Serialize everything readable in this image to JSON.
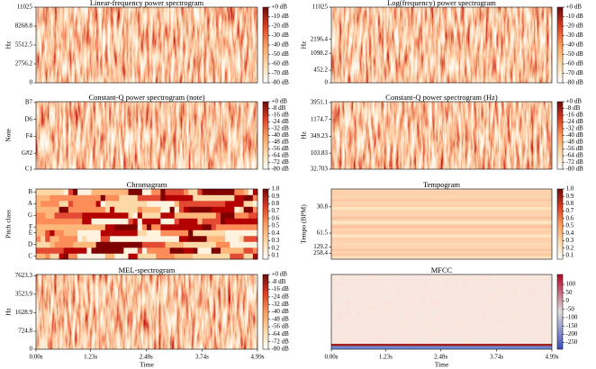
{
  "chart_data": [
    {
      "type": "spectrogram",
      "title": "Linear-frequency power spectrogram",
      "ylabel": "Hz",
      "yscale": "linear",
      "ylim": [
        0,
        11025
      ],
      "yticks": [
        0,
        2756.2,
        5512.5,
        8268.8,
        11025
      ],
      "colormap": "OrRd",
      "colorbar_lim": [
        -80,
        0
      ],
      "colorbar_ticks": [
        {
          "value": 0,
          "label": "+0 dB"
        },
        {
          "value": -10,
          "label": "-10 dB"
        },
        {
          "value": -20,
          "label": "-20 dB"
        },
        {
          "value": -30,
          "label": "-30 dB"
        },
        {
          "value": -40,
          "label": "-40 dB"
        },
        {
          "value": -50,
          "label": "-50 dB"
        },
        {
          "value": -60,
          "label": "-60 dB"
        },
        {
          "value": -70,
          "label": "-70 dB"
        },
        {
          "value": -80,
          "label": "-80 dB"
        }
      ]
    },
    {
      "type": "spectrogram",
      "title": "Log(frequency) power spectrogram",
      "ylabel": "Hz",
      "yscale": "symlog",
      "ylim": [
        0,
        11025
      ],
      "yticks": [
        0,
        452.2,
        1098.2,
        2196.4,
        11025
      ],
      "colormap": "OrRd",
      "colorbar_lim": [
        -80,
        0
      ],
      "colorbar_ticks": [
        {
          "value": 0,
          "label": "+0 dB"
        },
        {
          "value": -10,
          "label": "-10 dB"
        },
        {
          "value": -20,
          "label": "-20 dB"
        },
        {
          "value": -30,
          "label": "-30 dB"
        },
        {
          "value": -40,
          "label": "-40 dB"
        },
        {
          "value": -50,
          "label": "-50 dB"
        },
        {
          "value": -60,
          "label": "-60 dB"
        },
        {
          "value": -70,
          "label": "-70 dB"
        },
        {
          "value": -80,
          "label": "-80 dB"
        }
      ]
    },
    {
      "type": "spectrogram",
      "title": "Constant-Q power spectrogram (note)",
      "ylabel": "Note",
      "yscale": "log",
      "ylim": [
        32.703,
        4186
      ],
      "yticks": [
        {
          "value": 32.703,
          "label": "C1"
        },
        {
          "value": 103.83,
          "label": "G#2"
        },
        {
          "value": 349.23,
          "label": "F4"
        },
        {
          "value": 1174.7,
          "label": "D6"
        },
        {
          "value": 3951.1,
          "label": "B7"
        }
      ],
      "colormap": "OrRd",
      "colorbar_lim": [
        -80,
        0
      ],
      "colorbar_ticks": [
        {
          "value": 0,
          "label": "+0 dB"
        },
        {
          "value": -8,
          "label": "-8 dB"
        },
        {
          "value": -16,
          "label": "-16 dB"
        },
        {
          "value": -24,
          "label": "-24 dB"
        },
        {
          "value": -32,
          "label": "-32 dB"
        },
        {
          "value": -40,
          "label": "-40 dB"
        },
        {
          "value": -48,
          "label": "-48 dB"
        },
        {
          "value": -56,
          "label": "-56 dB"
        },
        {
          "value": -64,
          "label": "-64 dB"
        },
        {
          "value": -72,
          "label": "-72 dB"
        },
        {
          "value": -80,
          "label": "-80 dB"
        }
      ]
    },
    {
      "type": "spectrogram",
      "title": "Constant-Q power spectrogram (Hz)",
      "ylabel": "Hz",
      "yscale": "log",
      "ylim": [
        32.703,
        4186
      ],
      "yticks": [
        32.703,
        103.83,
        349.23,
        1174.7,
        3951.1
      ],
      "colormap": "OrRd",
      "colorbar_lim": [
        -80,
        0
      ],
      "colorbar_ticks": [
        {
          "value": 0,
          "label": "+0 dB"
        },
        {
          "value": -8,
          "label": "-8 dB"
        },
        {
          "value": -16,
          "label": "-16 dB"
        },
        {
          "value": -24,
          "label": "-24 dB"
        },
        {
          "value": -32,
          "label": "-32 dB"
        },
        {
          "value": -40,
          "label": "-40 dB"
        },
        {
          "value": -48,
          "label": "-48 dB"
        },
        {
          "value": -56,
          "label": "-56 dB"
        },
        {
          "value": -64,
          "label": "-64 dB"
        },
        {
          "value": -72,
          "label": "-72 dB"
        },
        {
          "value": -80,
          "label": "-80 dB"
        }
      ]
    },
    {
      "type": "chromagram",
      "title": "Chromagram",
      "ylabel": "Pitch class",
      "categories": [
        "C",
        null,
        "D",
        null,
        "E",
        "F",
        null,
        "G",
        null,
        "A",
        null,
        "B"
      ],
      "colormap": "OrRd",
      "colorbar_lim": [
        0.05,
        1
      ],
      "colorbar_ticks": [
        {
          "value": 1,
          "label": "1.0"
        },
        0.9,
        0.8,
        0.7,
        0.6,
        0.5,
        0.4,
        0.3,
        0.2,
        0.1
      ]
    },
    {
      "type": "tempogram",
      "title": "Tempogram",
      "ylabel": "Tempo (BPM)",
      "yscale": "reciprocal",
      "ylim": [
        5000,
        23
      ],
      "yticks": [
        30.8,
        61.5,
        129.2,
        258.4
      ],
      "colormap": "OrRd",
      "colorbar_lim": [
        0.05,
        1
      ],
      "colorbar_ticks": [
        {
          "value": 1,
          "label": "1.0"
        },
        0.9,
        0.8,
        0.7,
        0.6,
        0.5,
        0.4,
        0.3,
        0.2,
        0.1
      ]
    },
    {
      "type": "spectrogram",
      "title": "MEL-spectrogram",
      "ylabel": "Hz",
      "yscale": "mel",
      "ylim": [
        0,
        8000
      ],
      "yticks": [
        0,
        724.8,
        1628.9,
        3523.9,
        7623.3
      ],
      "colormap": "OrRd",
      "xlabel": "Time",
      "xlim": [
        0,
        4.99
      ],
      "xticks": [
        {
          "value": 0,
          "label": "0.00s"
        },
        {
          "value": 1.23,
          "label": "1.23s"
        },
        {
          "value": 2.48,
          "label": "2.48s"
        },
        {
          "value": 3.74,
          "label": "3.74s"
        },
        {
          "value": 4.99,
          "label": "4.99s"
        }
      ],
      "colorbar_lim": [
        -80,
        0
      ],
      "colorbar_ticks": [
        {
          "value": 0,
          "label": "+0 dB"
        },
        {
          "value": -8,
          "label": "-8 dB"
        },
        {
          "value": -16,
          "label": "-16 dB"
        },
        {
          "value": -24,
          "label": "-24 dB"
        },
        {
          "value": -32,
          "label": "-32 dB"
        },
        {
          "value": -40,
          "label": "-40 dB"
        },
        {
          "value": -48,
          "label": "-48 dB"
        },
        {
          "value": -56,
          "label": "-56 dB"
        },
        {
          "value": -64,
          "label": "-64 dB"
        },
        {
          "value": -72,
          "label": "-72 dB"
        },
        {
          "value": -80,
          "label": "-80 dB"
        }
      ]
    },
    {
      "type": "mfcc",
      "title": "MFCC",
      "colormap": "coolwarm",
      "xlabel": "Time",
      "xlim": [
        0,
        4.99
      ],
      "xticks": [
        {
          "value": 0,
          "label": "0.00s"
        },
        {
          "value": 1.23,
          "label": "1.23s"
        },
        {
          "value": 2.48,
          "label": "2.48s"
        },
        {
          "value": 3.74,
          "label": "3.74s"
        },
        {
          "value": 4.99,
          "label": "4.99s"
        }
      ],
      "colorbar_lim": [
        -290,
        160
      ],
      "colorbar_ticks": [
        100,
        50,
        0,
        -50,
        -100,
        -150,
        -200,
        -250
      ]
    }
  ]
}
